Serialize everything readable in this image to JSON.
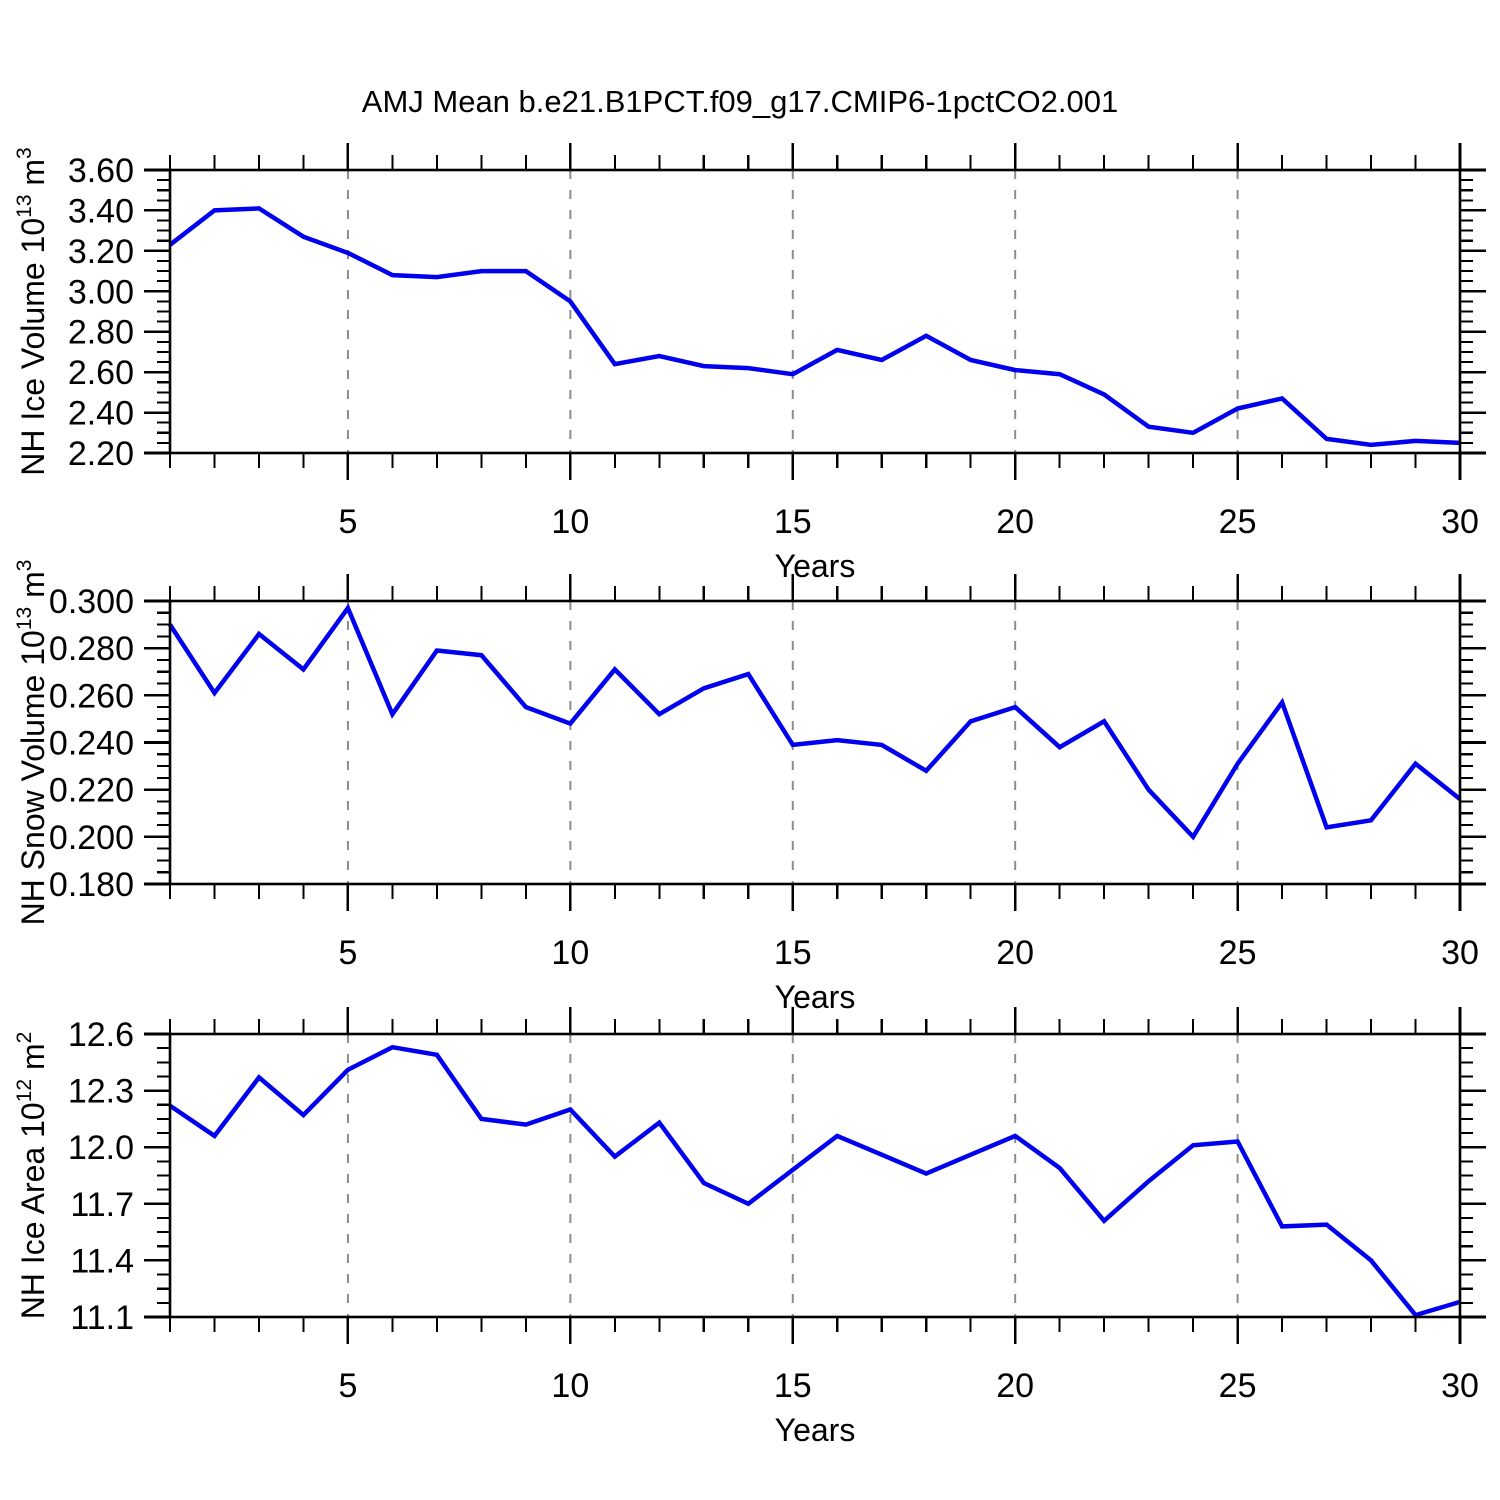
{
  "title": "AMJ Mean b.e21.B1PCT.f09_g17.CMIP6-1pctCO2.001",
  "colors": {
    "line": "#0000EE",
    "axis": "#000000",
    "grid": "#8C8C8C",
    "background": "#FFFFFF",
    "text": "#000000"
  },
  "x_major_ticks": [
    5,
    10,
    15,
    20,
    25,
    30
  ],
  "x_gridlines": [
    5,
    10,
    15,
    20,
    25
  ],
  "x_range": [
    1,
    30
  ],
  "chart_data": [
    {
      "type": "line",
      "name": "nh-ice-volume",
      "ylabel": "NH Ice Volume 10¹³ m³",
      "ylabel_rich": [
        {
          "text": "NH Ice Volume 10"
        },
        {
          "text": "13",
          "sup": true
        },
        {
          "text": " m"
        },
        {
          "text": "3",
          "sup": true
        }
      ],
      "xlabel": "Years",
      "ylim": [
        2.2,
        3.6
      ],
      "ytick_labels": [
        "2.20",
        "2.40",
        "2.60",
        "2.80",
        "3.00",
        "3.20",
        "3.40",
        "3.60"
      ],
      "y_minor_per_major": 4,
      "grid": "dashed-vertical",
      "legend": "none",
      "x": [
        1,
        2,
        3,
        4,
        5,
        6,
        7,
        8,
        9,
        10,
        11,
        12,
        13,
        14,
        15,
        16,
        17,
        18,
        19,
        20,
        21,
        22,
        23,
        24,
        25,
        26,
        27,
        28,
        29,
        30
      ],
      "values": [
        3.23,
        3.4,
        3.41,
        3.27,
        3.19,
        3.08,
        3.07,
        3.1,
        3.1,
        2.95,
        2.64,
        2.68,
        2.63,
        2.62,
        2.59,
        2.71,
        2.66,
        2.78,
        2.66,
        2.61,
        2.59,
        2.49,
        2.33,
        2.3,
        2.42,
        2.47,
        2.27,
        2.24,
        2.26,
        2.25
      ]
    },
    {
      "type": "line",
      "name": "nh-snow-volume",
      "ylabel": "NH Snow Volume 10¹³ m³",
      "ylabel_rich": [
        {
          "text": "NH Snow Volume 10"
        },
        {
          "text": "13",
          "sup": true
        },
        {
          "text": " m"
        },
        {
          "text": "3",
          "sup": true
        }
      ],
      "xlabel": "Years",
      "ylim": [
        0.18,
        0.3
      ],
      "ytick_labels": [
        "0.180",
        "0.200",
        "0.220",
        "0.240",
        "0.260",
        "0.280",
        "0.300"
      ],
      "y_minor_per_major": 4,
      "grid": "dashed-vertical",
      "legend": "none",
      "x": [
        1,
        2,
        3,
        4,
        5,
        6,
        7,
        8,
        9,
        10,
        11,
        12,
        13,
        14,
        15,
        16,
        17,
        18,
        19,
        20,
        21,
        22,
        23,
        24,
        25,
        26,
        27,
        28,
        29,
        30
      ],
      "values": [
        0.29,
        0.261,
        0.286,
        0.271,
        0.297,
        0.252,
        0.279,
        0.277,
        0.255,
        0.248,
        0.271,
        0.252,
        0.263,
        0.269,
        0.239,
        0.241,
        0.239,
        0.228,
        0.249,
        0.255,
        0.238,
        0.249,
        0.22,
        0.2,
        0.231,
        0.257,
        0.204,
        0.207,
        0.231,
        0.216
      ]
    },
    {
      "type": "line",
      "name": "nh-ice-area",
      "ylabel": "NH Ice Area 10¹² m²",
      "ylabel_rich": [
        {
          "text": "NH Ice Area 10"
        },
        {
          "text": "12",
          "sup": true
        },
        {
          "text": " m"
        },
        {
          "text": "2",
          "sup": true
        }
      ],
      "xlabel": "Years",
      "ylim": [
        11.1,
        12.6
      ],
      "ytick_labels": [
        "11.1",
        "11.4",
        "11.7",
        "12.0",
        "12.3",
        "12.6"
      ],
      "y_minor_per_major": 4,
      "grid": "dashed-vertical",
      "legend": "none",
      "x": [
        1,
        2,
        3,
        4,
        5,
        6,
        7,
        8,
        9,
        10,
        11,
        12,
        13,
        14,
        15,
        16,
        17,
        18,
        19,
        20,
        21,
        22,
        23,
        24,
        25,
        26,
        27,
        28,
        29,
        30
      ],
      "values": [
        12.22,
        12.06,
        12.37,
        12.17,
        12.41,
        12.53,
        12.49,
        12.15,
        12.12,
        12.2,
        11.95,
        12.13,
        11.81,
        11.7,
        11.88,
        12.06,
        11.96,
        11.86,
        11.96,
        12.06,
        11.89,
        11.61,
        11.82,
        12.01,
        12.03,
        11.58,
        11.59,
        11.4,
        11.11,
        11.18
      ]
    }
  ]
}
